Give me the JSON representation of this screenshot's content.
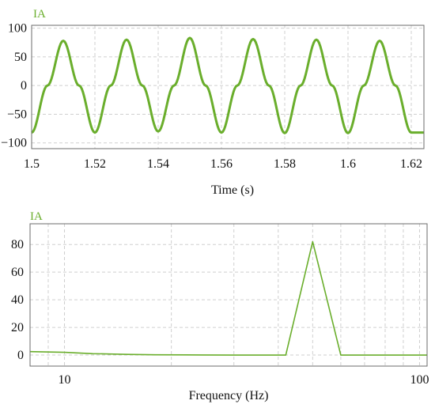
{
  "colors": {
    "series": "#6aae2c",
    "grid": "#cfcfcf",
    "frame": "#6b6b6b"
  },
  "chart_data": [
    {
      "type": "line",
      "series_label": "IA",
      "xlabel": "Time (s)",
      "ylabel": "",
      "xlim": [
        1.5,
        1.624
      ],
      "ylim": [
        -110,
        105
      ],
      "x_ticks": [
        1.5,
        1.52,
        1.54,
        1.56,
        1.58,
        1.6,
        1.62
      ],
      "x_tick_labels": [
        "1.5",
        "1.52",
        "1.54",
        "1.56",
        "1.58",
        "1.6",
        "1.62"
      ],
      "y_ticks": [
        100,
        50,
        0,
        -50,
        -100
      ],
      "y_tick_labels": [
        "100",
        "50",
        "0",
        "−50",
        "−100"
      ],
      "grid": true,
      "series": [
        {
          "name": "IA",
          "x": [
            1.5,
            1.505,
            1.51,
            1.515,
            1.52,
            1.525,
            1.53,
            1.535,
            1.54,
            1.545,
            1.55,
            1.555,
            1.56,
            1.565,
            1.57,
            1.575,
            1.58,
            1.585,
            1.59,
            1.595,
            1.6,
            1.605,
            1.61,
            1.615,
            1.62,
            1.624
          ],
          "y": [
            -82,
            0,
            78,
            0,
            -82,
            0,
            80,
            0,
            -80,
            0,
            83,
            0,
            -82,
            0,
            81,
            0,
            -83,
            0,
            80,
            0,
            -83,
            0,
            78,
            0,
            -82,
            -82
          ]
        }
      ]
    },
    {
      "type": "line",
      "series_label": "IA",
      "xlabel": "Frequency (Hz)",
      "ylabel": "",
      "xscale": "log",
      "xlim": [
        8,
        105
      ],
      "ylim": [
        -8,
        95
      ],
      "x_ticks": [
        10,
        100
      ],
      "x_tick_labels": [
        "10",
        "100"
      ],
      "y_ticks": [
        80,
        60,
        40,
        20,
        0
      ],
      "y_tick_labels": [
        "80",
        "60",
        "40",
        "20",
        "0"
      ],
      "grid": true,
      "series": [
        {
          "name": "IA",
          "x": [
            8,
            10,
            12,
            15,
            18,
            22,
            30,
            40,
            42,
            50,
            60,
            70,
            105
          ],
          "y": [
            2.5,
            2.0,
            1.0,
            0.5,
            0.2,
            0.1,
            0,
            0,
            0,
            82,
            0,
            0,
            0
          ]
        }
      ]
    }
  ]
}
